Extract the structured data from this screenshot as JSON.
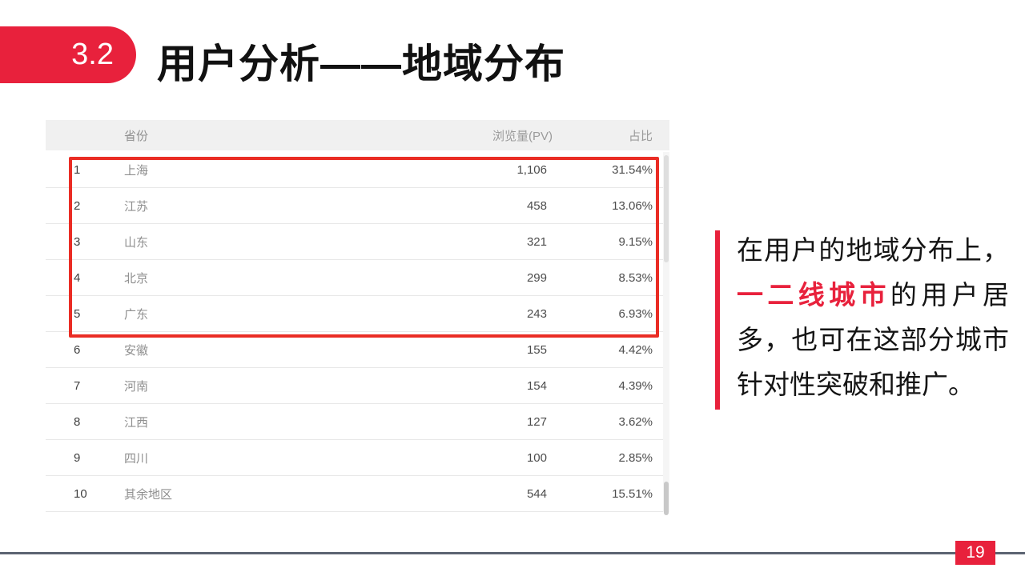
{
  "slide": {
    "section_number": "3.2",
    "title": "用户分析——地域分布",
    "page_number": "19"
  },
  "table": {
    "headers": {
      "province": "省份",
      "pv": "浏览量(PV)",
      "share": "占比"
    },
    "rows": [
      {
        "rank": "1",
        "province": "上海",
        "pv": "1,106",
        "share": "31.54%"
      },
      {
        "rank": "2",
        "province": "江苏",
        "pv": "458",
        "share": "13.06%"
      },
      {
        "rank": "3",
        "province": "山东",
        "pv": "321",
        "share": "9.15%"
      },
      {
        "rank": "4",
        "province": "北京",
        "pv": "299",
        "share": "8.53%"
      },
      {
        "rank": "5",
        "province": "广东",
        "pv": "243",
        "share": "6.93%"
      },
      {
        "rank": "6",
        "province": "安徽",
        "pv": "155",
        "share": "4.42%"
      },
      {
        "rank": "7",
        "province": "河南",
        "pv": "154",
        "share": "4.39%"
      },
      {
        "rank": "8",
        "province": "江西",
        "pv": "127",
        "share": "3.62%"
      },
      {
        "rank": "9",
        "province": "四川",
        "pv": "100",
        "share": "2.85%"
      },
      {
        "rank": "10",
        "province": "其余地区",
        "pv": "544",
        "share": "15.51%"
      }
    ],
    "highlighted_ranks": [
      1,
      2,
      3,
      4,
      5
    ]
  },
  "note": {
    "prefix": "在用户的地域分布上，",
    "highlight": "一二线城市",
    "suffix": "的用户居多，也可在这部分城市针对性突破和推广。"
  },
  "colors": {
    "accent_red": "#e8213c",
    "box_red": "#ea2c24",
    "line_gray": "#5c6472"
  }
}
